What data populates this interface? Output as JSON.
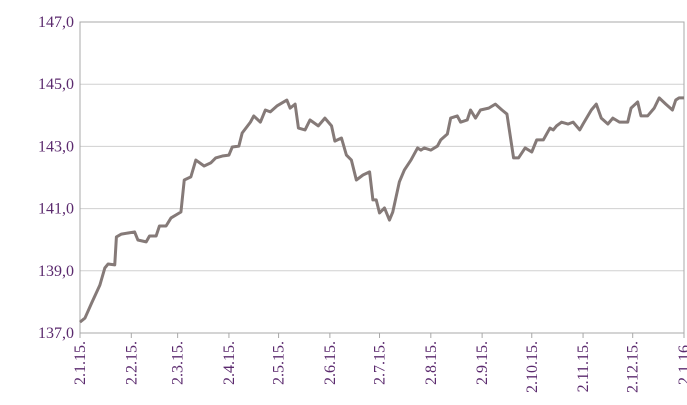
{
  "chart_data": {
    "type": "line",
    "color": "#857a78",
    "grid": true,
    "x": [
      "2015-01-02",
      "2015-01-05",
      "2015-01-09",
      "2015-01-14",
      "2015-01-17",
      "2015-01-19",
      "2015-01-23",
      "2015-01-24",
      "2015-01-27",
      "2015-02-04",
      "2015-02-06",
      "2015-02-11",
      "2015-02-13",
      "2015-02-17",
      "2015-02-19",
      "2015-02-23",
      "2015-02-26",
      "2015-03-04",
      "2015-03-06",
      "2015-03-10",
      "2015-03-13",
      "2015-03-18",
      "2015-03-22",
      "2015-03-25",
      "2015-03-29",
      "2015-04-02",
      "2015-04-04",
      "2015-04-08",
      "2015-04-10",
      "2015-04-15",
      "2015-04-17",
      "2015-04-21",
      "2015-04-24",
      "2015-04-27",
      "2015-05-01",
      "2015-05-07",
      "2015-05-09",
      "2015-05-12",
      "2015-05-14",
      "2015-05-18",
      "2015-05-21",
      "2015-05-26",
      "2015-05-30",
      "2015-06-03",
      "2015-06-05",
      "2015-06-09",
      "2015-06-12",
      "2015-06-15",
      "2015-06-18",
      "2015-06-22",
      "2015-06-26",
      "2015-06-28",
      "2015-06-30",
      "2015-07-02",
      "2015-07-05",
      "2015-07-08",
      "2015-07-10",
      "2015-07-14",
      "2015-07-17",
      "2015-07-21",
      "2015-07-25",
      "2015-07-27",
      "2015-07-29",
      "2015-08-02",
      "2015-08-06",
      "2015-08-08",
      "2015-08-12",
      "2015-08-14",
      "2015-08-18",
      "2015-08-20",
      "2015-08-24",
      "2015-08-26",
      "2015-08-29",
      "2015-09-01",
      "2015-09-06",
      "2015-09-10",
      "2015-09-14",
      "2015-09-17",
      "2015-09-21",
      "2015-09-24",
      "2015-09-28",
      "2015-10-02",
      "2015-10-05",
      "2015-10-09",
      "2015-10-13",
      "2015-10-15",
      "2015-10-17",
      "2015-10-20",
      "2015-10-24",
      "2015-10-27",
      "2015-10-31",
      "2015-11-02",
      "2015-11-07",
      "2015-11-10",
      "2015-11-13",
      "2015-11-17",
      "2015-11-20",
      "2015-11-24",
      "2015-11-29",
      "2015-12-01",
      "2015-12-05",
      "2015-12-07",
      "2015-12-11",
      "2015-12-15",
      "2015-12-18",
      "2015-12-22",
      "2015-12-26",
      "2015-12-28",
      "2015-12-30",
      "2016-01-02"
    ],
    "values": [
      137.35,
      137.48,
      137.96,
      138.54,
      139.09,
      139.22,
      139.19,
      140.09,
      140.18,
      140.25,
      139.99,
      139.93,
      140.12,
      140.12,
      140.44,
      140.44,
      140.7,
      140.89,
      141.92,
      142.02,
      142.56,
      142.37,
      142.47,
      142.63,
      142.69,
      142.72,
      142.98,
      143.01,
      143.43,
      143.78,
      143.98,
      143.78,
      144.17,
      144.11,
      144.3,
      144.49,
      144.23,
      144.36,
      143.59,
      143.53,
      143.85,
      143.66,
      143.91,
      143.66,
      143.17,
      143.27,
      142.72,
      142.56,
      141.92,
      142.08,
      142.18,
      141.28,
      141.28,
      140.86,
      141.02,
      140.63,
      140.89,
      141.86,
      142.24,
      142.56,
      142.95,
      142.88,
      142.95,
      142.88,
      143.01,
      143.21,
      143.4,
      143.91,
      143.98,
      143.78,
      143.85,
      144.17,
      143.91,
      144.17,
      144.23,
      144.36,
      144.17,
      144.04,
      142.63,
      142.63,
      142.95,
      142.82,
      143.21,
      143.21,
      143.59,
      143.53,
      143.66,
      143.78,
      143.72,
      143.78,
      143.53,
      143.72,
      144.17,
      144.36,
      143.91,
      143.72,
      143.91,
      143.78,
      143.78,
      144.23,
      144.43,
      143.98,
      143.98,
      144.23,
      144.56,
      144.36,
      144.17,
      144.49,
      144.56,
      144.56
    ],
    "xlim": [
      "2015-01-02",
      "2016-01-02"
    ],
    "xticks": [
      {
        "value": "2015-01-02",
        "label": "2.1.15."
      },
      {
        "value": "2015-02-02",
        "label": "2.2.15."
      },
      {
        "value": "2015-03-02",
        "label": "2.3.15."
      },
      {
        "value": "2015-04-02",
        "label": "2.4.15."
      },
      {
        "value": "2015-05-02",
        "label": "2.5.15."
      },
      {
        "value": "2015-06-02",
        "label": "2.6.15."
      },
      {
        "value": "2015-07-02",
        "label": "2.7.15."
      },
      {
        "value": "2015-08-02",
        "label": "2.8.15."
      },
      {
        "value": "2015-09-02",
        "label": "2.9.15."
      },
      {
        "value": "2015-10-02",
        "label": "2.10.15."
      },
      {
        "value": "2015-11-02",
        "label": "2.11.15."
      },
      {
        "value": "2015-12-02",
        "label": "2.12.15."
      },
      {
        "value": "2016-01-02",
        "label": "2.1.16."
      }
    ],
    "ylim": [
      137,
      147
    ],
    "yticks": [
      {
        "value": 137,
        "label": "137,0"
      },
      {
        "value": 139,
        "label": "139,0"
      },
      {
        "value": 141,
        "label": "141,0"
      },
      {
        "value": 143,
        "label": "143,0"
      },
      {
        "value": 145,
        "label": "145,0"
      },
      {
        "value": 147,
        "label": "147,0"
      }
    ]
  }
}
